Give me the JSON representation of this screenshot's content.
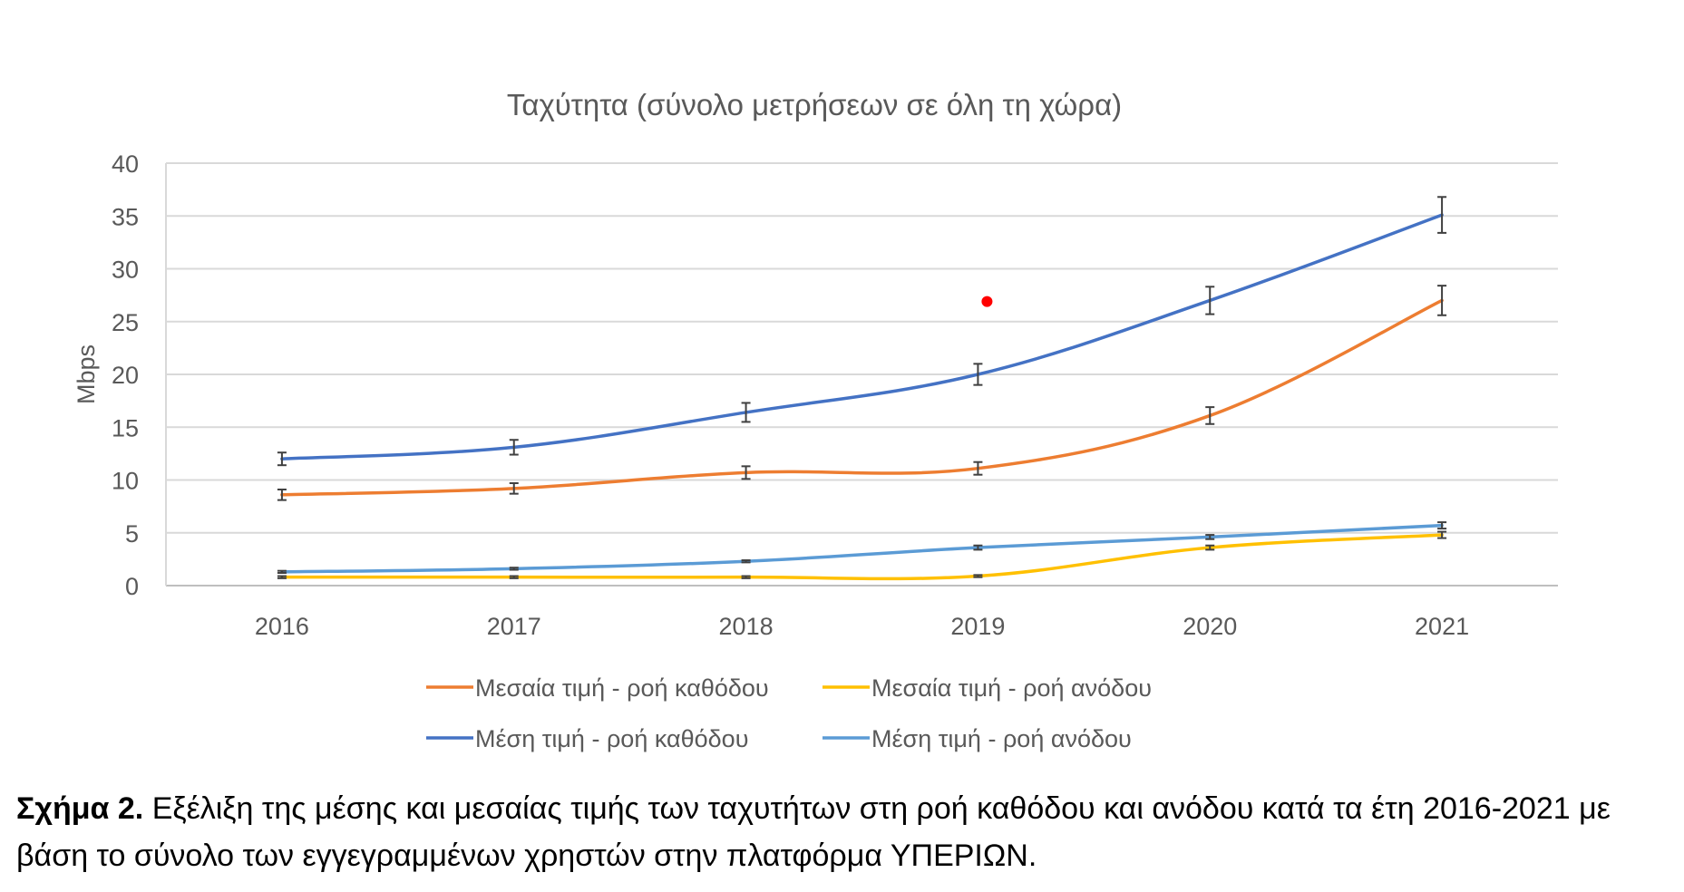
{
  "chart_data": {
    "type": "line",
    "title": "Ταχύτητα (σύνολο μετρήσεων σε όλη τη χώρα)",
    "xlabel": "",
    "ylabel": "Mbps",
    "categories": [
      "2016",
      "2017",
      "2018",
      "2019",
      "2020",
      "2021"
    ],
    "ylim": [
      0,
      40
    ],
    "yticks": [
      0,
      5,
      10,
      15,
      20,
      25,
      30,
      35,
      40
    ],
    "grid": true,
    "legend": "bottom",
    "series": [
      {
        "name": "Μεσαία τιμή - ροή καθόδου",
        "color": "#ED7D31",
        "values": [
          8.6,
          9.2,
          10.7,
          11.1,
          16.1,
          27.0
        ],
        "errors": [
          0.5,
          0.5,
          0.6,
          0.6,
          0.8,
          1.4
        ]
      },
      {
        "name": "Μεσαία τιμή - ροή ανόδου",
        "color": "#FFC000",
        "values": [
          0.8,
          0.8,
          0.8,
          0.9,
          3.6,
          4.8
        ],
        "errors": [
          0.1,
          0.1,
          0.1,
          0.1,
          0.2,
          0.3
        ]
      },
      {
        "name": "Μέση τιμή - ροή καθόδου",
        "color": "#4472C4",
        "values": [
          12.0,
          13.1,
          16.4,
          20.0,
          27.0,
          35.1
        ],
        "errors": [
          0.6,
          0.7,
          0.9,
          1.0,
          1.3,
          1.7
        ]
      },
      {
        "name": "Μέση τιμή - ροή ανόδου",
        "color": "#5B9BD5",
        "values": [
          1.3,
          1.6,
          2.3,
          3.6,
          4.6,
          5.7
        ],
        "errors": [
          0.1,
          0.1,
          0.1,
          0.2,
          0.2,
          0.3
        ]
      }
    ],
    "annotations": [
      {
        "type": "marker",
        "x": "2019",
        "y": 26.9,
        "color": "#FF0000"
      }
    ]
  },
  "caption": {
    "label": "Σχήμα  2.",
    "text": " Εξέλιξη της μέσης και μεσαίας τιμής των ταχυτήτων στη ροή καθόδου και ανόδου κατά τα έτη 2016-2021 με βάση το σύνολο των εγγεγραμμένων χρηστών στην πλατφόρμα ΥΠΕΡΙΩΝ."
  },
  "colors": {
    "grid": "#D9D9D9",
    "axis_text": "#595959",
    "error_bar": "#404040"
  }
}
